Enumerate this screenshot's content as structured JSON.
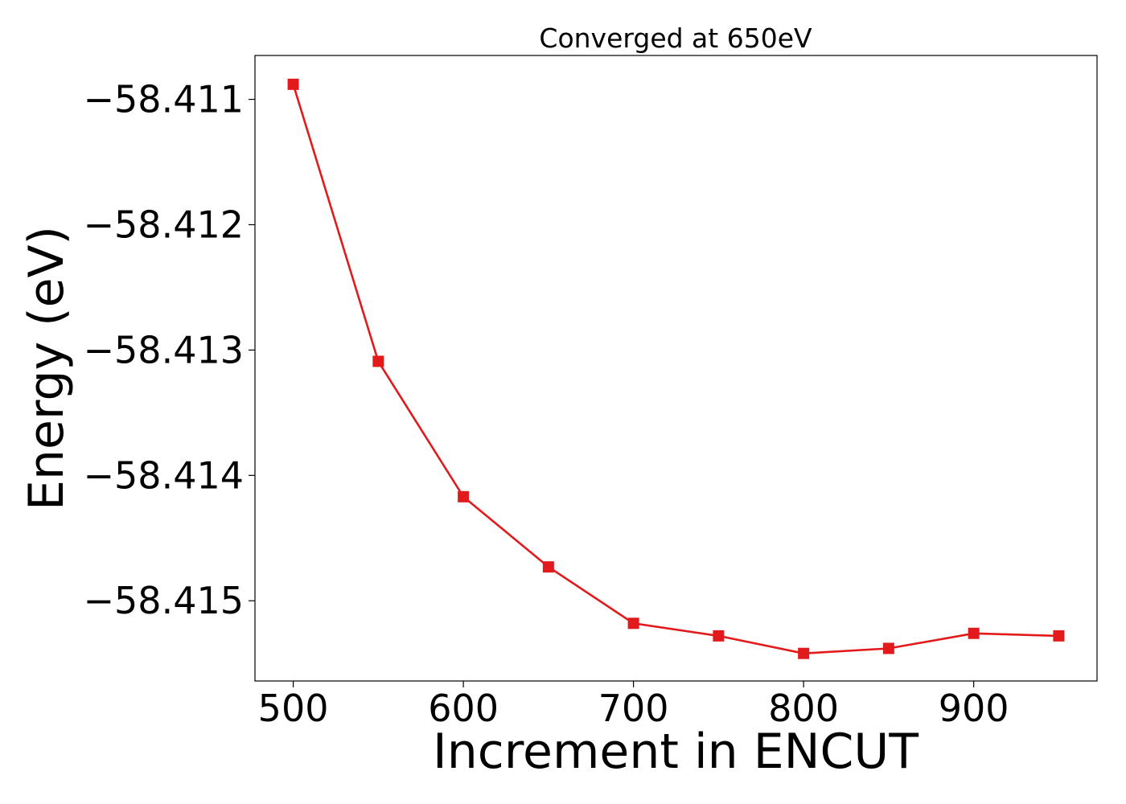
{
  "chart_data": {
    "type": "line",
    "title": "Converged at 650eV",
    "xlabel": "Increment in ENCUT",
    "ylabel": "Energy (eV)",
    "x": [
      500,
      550,
      600,
      650,
      700,
      750,
      800,
      850,
      900,
      950
    ],
    "series": [
      {
        "values": [
          -58.41088,
          -58.41309,
          -58.41417,
          -58.41473,
          -58.41518,
          -58.41528,
          -58.41542,
          -58.41538,
          -58.41526,
          -58.41528
        ],
        "color": "#e31a1c",
        "marker": "square"
      }
    ],
    "xlim": [
      477.5,
      972.5
    ],
    "ylim": [
      -58.41564,
      -58.41065
    ],
    "xticks": [
      500,
      600,
      700,
      800,
      900
    ],
    "xtick_labels": [
      "500",
      "600",
      "700",
      "800",
      "900"
    ],
    "yticks": [
      -58.411,
      -58.412,
      -58.413,
      -58.414,
      -58.415
    ],
    "ytick_labels": [
      "−58.411",
      "−58.412",
      "−58.413",
      "−58.414",
      "−58.415"
    ],
    "grid": false,
    "legend": "none"
  }
}
